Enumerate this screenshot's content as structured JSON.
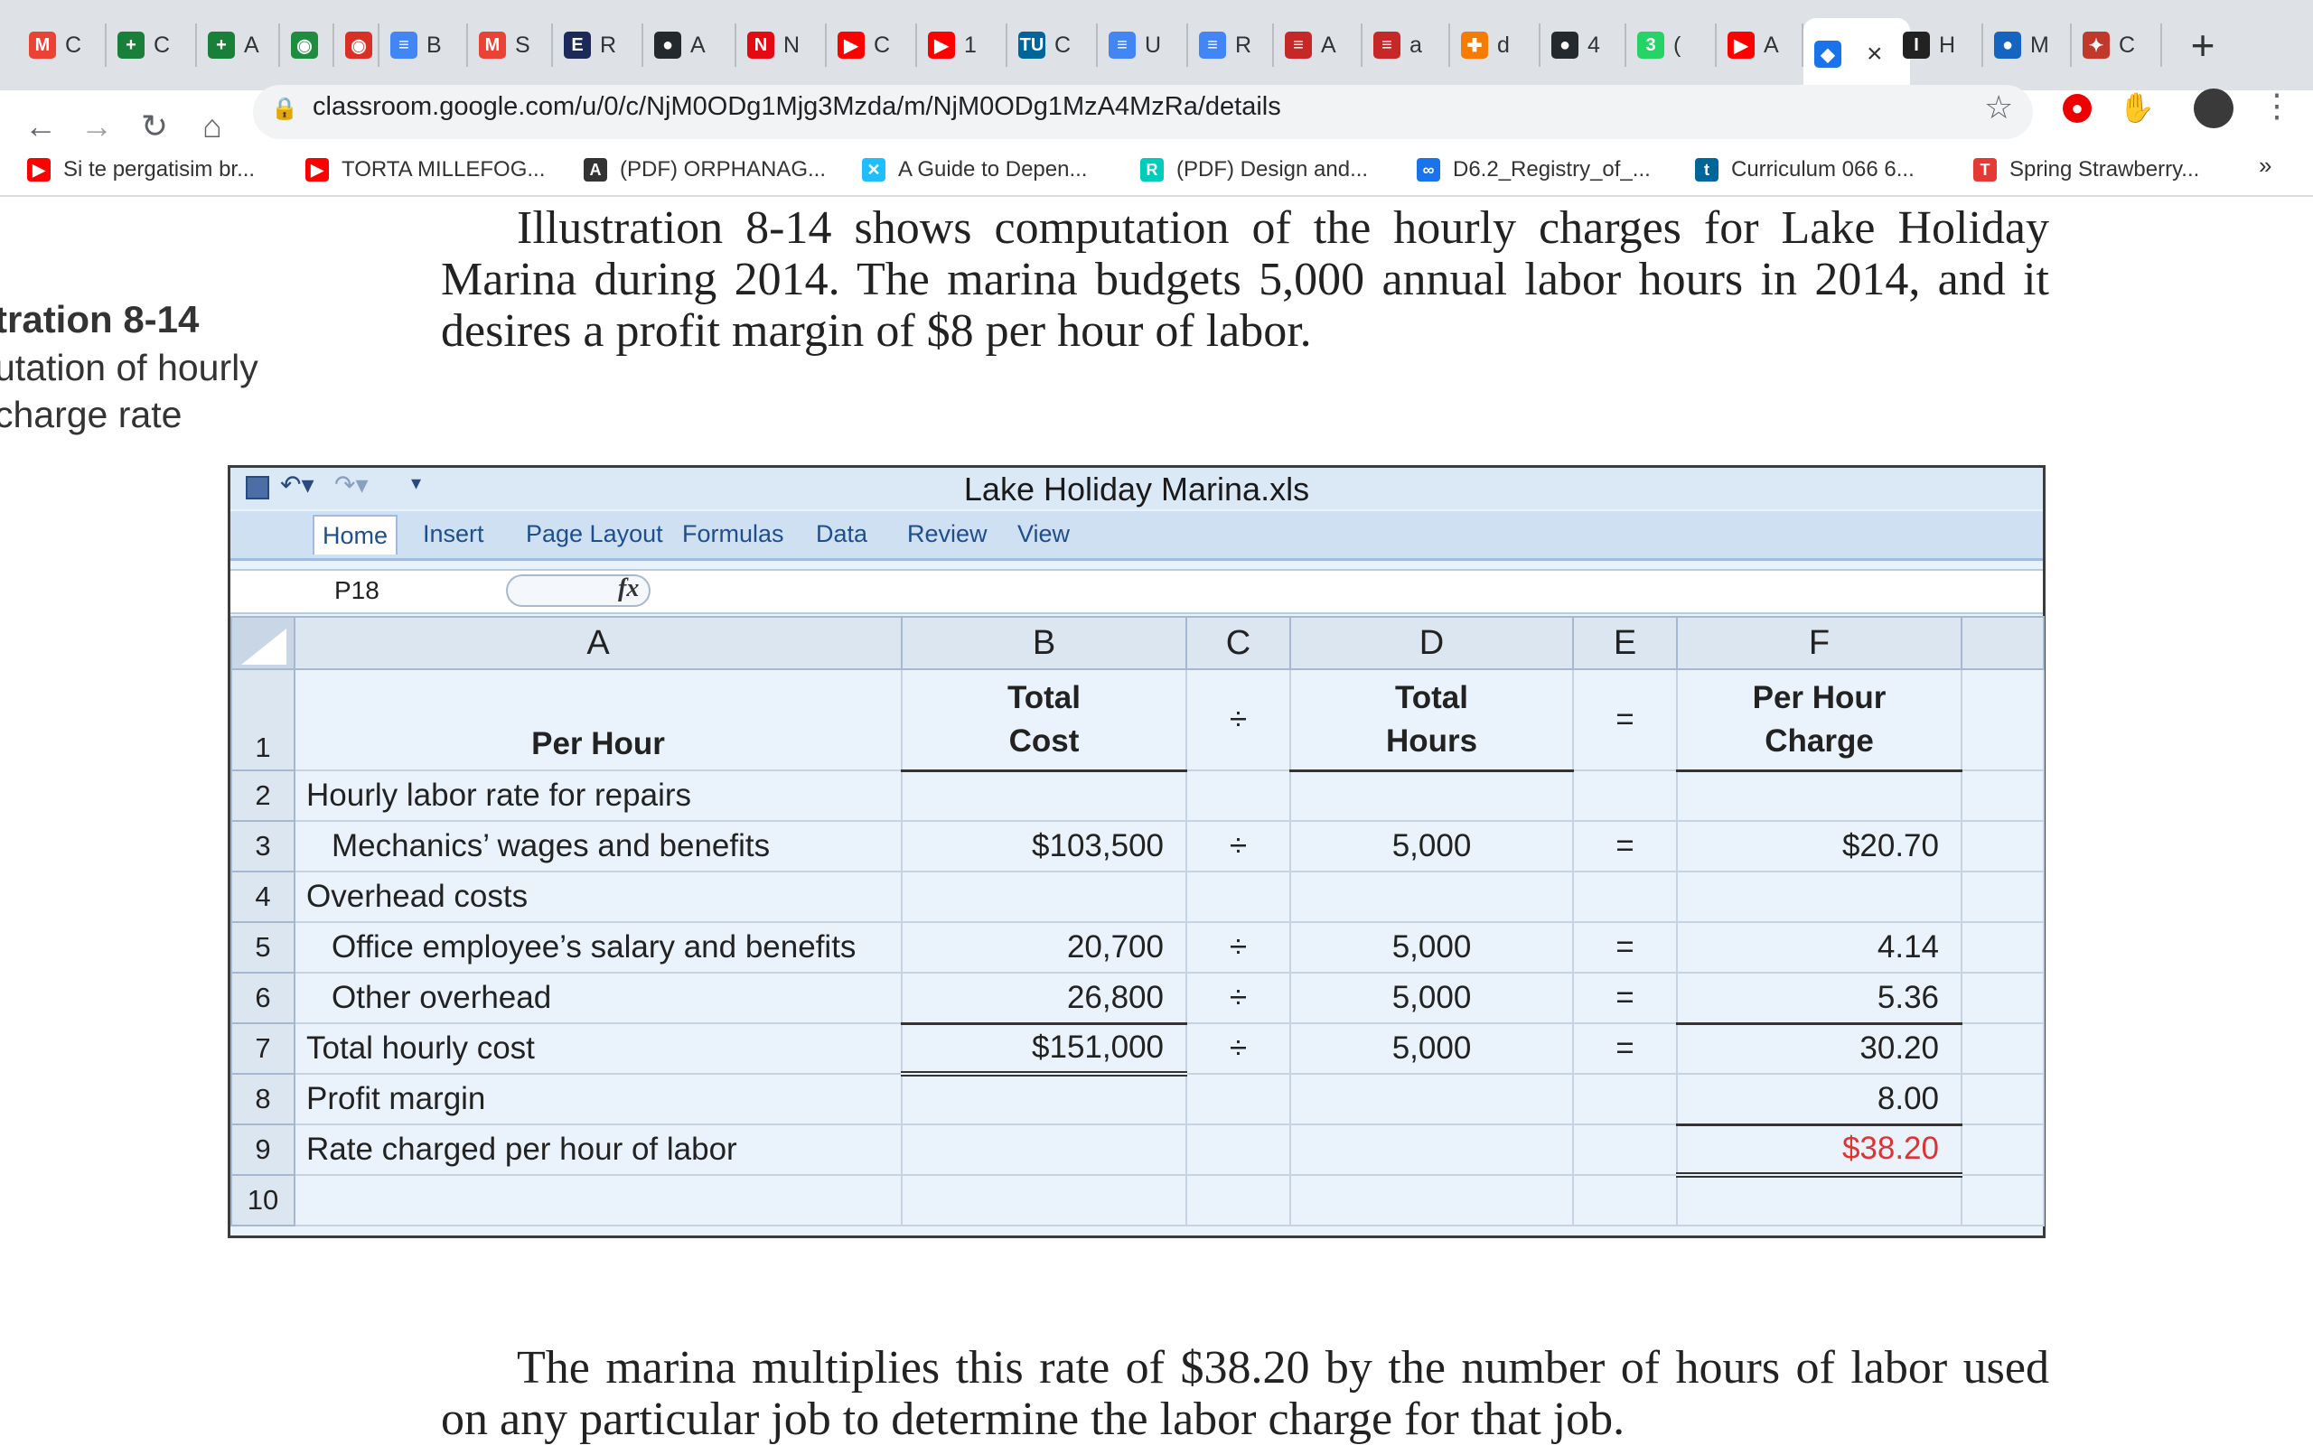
{
  "browser": {
    "tabs": [
      {
        "label": "C",
        "icon": "gmail-icon",
        "color": "#ea4335"
      },
      {
        "label": "C",
        "icon": "sheets-icon",
        "color": "#188038"
      },
      {
        "label": "A",
        "icon": "sheets-icon",
        "color": "#188038"
      },
      {
        "label": "",
        "icon": "chat-icon",
        "color": "#1e8e3e"
      },
      {
        "label": "",
        "icon": "record-icon",
        "color": "#d93025"
      },
      {
        "label": "B",
        "icon": "docs-icon",
        "color": "#4285f4"
      },
      {
        "label": "S",
        "icon": "gmail-icon",
        "color": "#ea4335"
      },
      {
        "label": "R",
        "icon": "eth-icon",
        "color": "#1b2a5b"
      },
      {
        "label": "A",
        "icon": "github-icon",
        "color": "#24292e"
      },
      {
        "label": "N",
        "icon": "netflix-icon",
        "color": "#e50914"
      },
      {
        "label": "C",
        "icon": "youtube-icon",
        "color": "#ff0000"
      },
      {
        "label": "1",
        "icon": "youtube-icon",
        "color": "#ff0000"
      },
      {
        "label": "C",
        "icon": "tu-wien-icon",
        "color": "#006699"
      },
      {
        "label": "U",
        "icon": "docs-icon",
        "color": "#4285f4"
      },
      {
        "label": "R",
        "icon": "docs-icon",
        "color": "#4285f4"
      },
      {
        "label": "A",
        "icon": "flag-icon",
        "color": "#c62828"
      },
      {
        "label": "a",
        "icon": "flag-icon",
        "color": "#c62828"
      },
      {
        "label": "d",
        "icon": "puzzle-icon",
        "color": "#f57c00"
      },
      {
        "label": "4",
        "icon": "github-icon",
        "color": "#24292e"
      },
      {
        "label": "(",
        "icon": "whatsapp-icon",
        "color": "#25d366"
      },
      {
        "label": "A",
        "icon": "youtube-icon",
        "color": "#ff0000"
      },
      {
        "label": "",
        "icon": "classroom-icon",
        "color": "#1a73e8",
        "active": true,
        "close": "×"
      },
      {
        "label": "H",
        "icon": "text-cursor-icon",
        "color": "#222222"
      },
      {
        "label": "M",
        "icon": "location-icon",
        "color": "#1565c0"
      },
      {
        "label": "C",
        "icon": "figure-icon",
        "color": "#c0392b"
      }
    ],
    "new_tab": "+",
    "nav": {
      "back": "←",
      "forward": "→",
      "reload": "↻",
      "home": "⌂"
    },
    "url": "classroom.google.com/u/0/c/NjM0ODg1Mjg3Mzda/m/NjM0ODg1MzA4MzRa/details",
    "bookmarks": [
      {
        "label": "Si te pergatisim br...",
        "icon": "youtube-icon",
        "color": "#ff0000"
      },
      {
        "label": "TORTA MILLEFOG...",
        "icon": "youtube-icon",
        "color": "#ff0000"
      },
      {
        "label": "(PDF) ORPHANAG...",
        "icon": "academia-icon",
        "color": "#333333"
      },
      {
        "label": "A Guide to Depen...",
        "icon": "kaggle-icon",
        "color": "#20beff"
      },
      {
        "label": "(PDF) Design and...",
        "icon": "researchgate-icon",
        "color": "#00ccbb"
      },
      {
        "label": "D6.2_Registry_of_...",
        "icon": "link-icon",
        "color": "#1a73e8"
      },
      {
        "label": "Curriculum 066 6...",
        "icon": "tiss-icon",
        "color": "#006699"
      },
      {
        "label": "Spring Strawberry...",
        "icon": "taste-icon",
        "color": "#e53935"
      }
    ],
    "bookmarks_more": "»"
  },
  "page": {
    "intro": "Illustration 8-14 shows computation of the hourly charges for Lake Holiday Marina during 2014. The marina budgets 5,000 annual labor hours in 2014, and it desires a profit margin of $8 per hour of labor.",
    "side_title": "tration 8-14",
    "side_sub1": "utation of hourly",
    "side_sub2": "charge rate",
    "outro": "The marina multiplies this rate of $38.20 by the number of hours of labor used on any particular job to determine the labor charge for that job."
  },
  "excel": {
    "title": "Lake Holiday Marina.xls",
    "ribbon_tabs": [
      "Home",
      "Insert",
      "Page Layout",
      "Formulas",
      "Data",
      "Review",
      "View"
    ],
    "name_box": "P18",
    "fx": "fx",
    "columns": [
      "A",
      "B",
      "C",
      "D",
      "E",
      "F"
    ],
    "header": {
      "row": "1",
      "a": "Per Hour",
      "b1": "Total",
      "b2": "Cost",
      "c": "÷",
      "d1": "Total",
      "d2": "Hours",
      "e": "=",
      "f1": "Per Hour",
      "f2": "Charge"
    },
    "rows": [
      {
        "n": "2",
        "label": "Hourly labor rate for repairs",
        "b": "",
        "c": "",
        "d": "",
        "e": "",
        "f": ""
      },
      {
        "n": "3",
        "label": "Mechanics’ wages and benefits",
        "b": "$103,500",
        "c": "÷",
        "d": "5,000",
        "e": "=",
        "f": "$20.70"
      },
      {
        "n": "4",
        "label": "Overhead costs",
        "b": "",
        "c": "",
        "d": "",
        "e": "",
        "f": ""
      },
      {
        "n": "5",
        "label": "Office employee’s salary and benefits",
        "b": "20,700",
        "c": "÷",
        "d": "5,000",
        "e": "=",
        "f": "4.14"
      },
      {
        "n": "6",
        "label": "Other overhead",
        "b": "26,800",
        "c": "÷",
        "d": "5,000",
        "e": "=",
        "f": "5.36"
      },
      {
        "n": "7",
        "label": "Total hourly cost",
        "b": "$151,000",
        "c": "÷",
        "d": "5,000",
        "e": "=",
        "f": "30.20"
      },
      {
        "n": "8",
        "label": "Profit margin",
        "b": "",
        "c": "",
        "d": "",
        "e": "",
        "f": "8.00"
      },
      {
        "n": "9",
        "label": "Rate charged per hour of labor",
        "b": "",
        "c": "",
        "d": "",
        "e": "",
        "f": "$38.20"
      },
      {
        "n": "10",
        "label": "",
        "b": "",
        "c": "",
        "d": "",
        "e": "",
        "f": ""
      }
    ]
  }
}
